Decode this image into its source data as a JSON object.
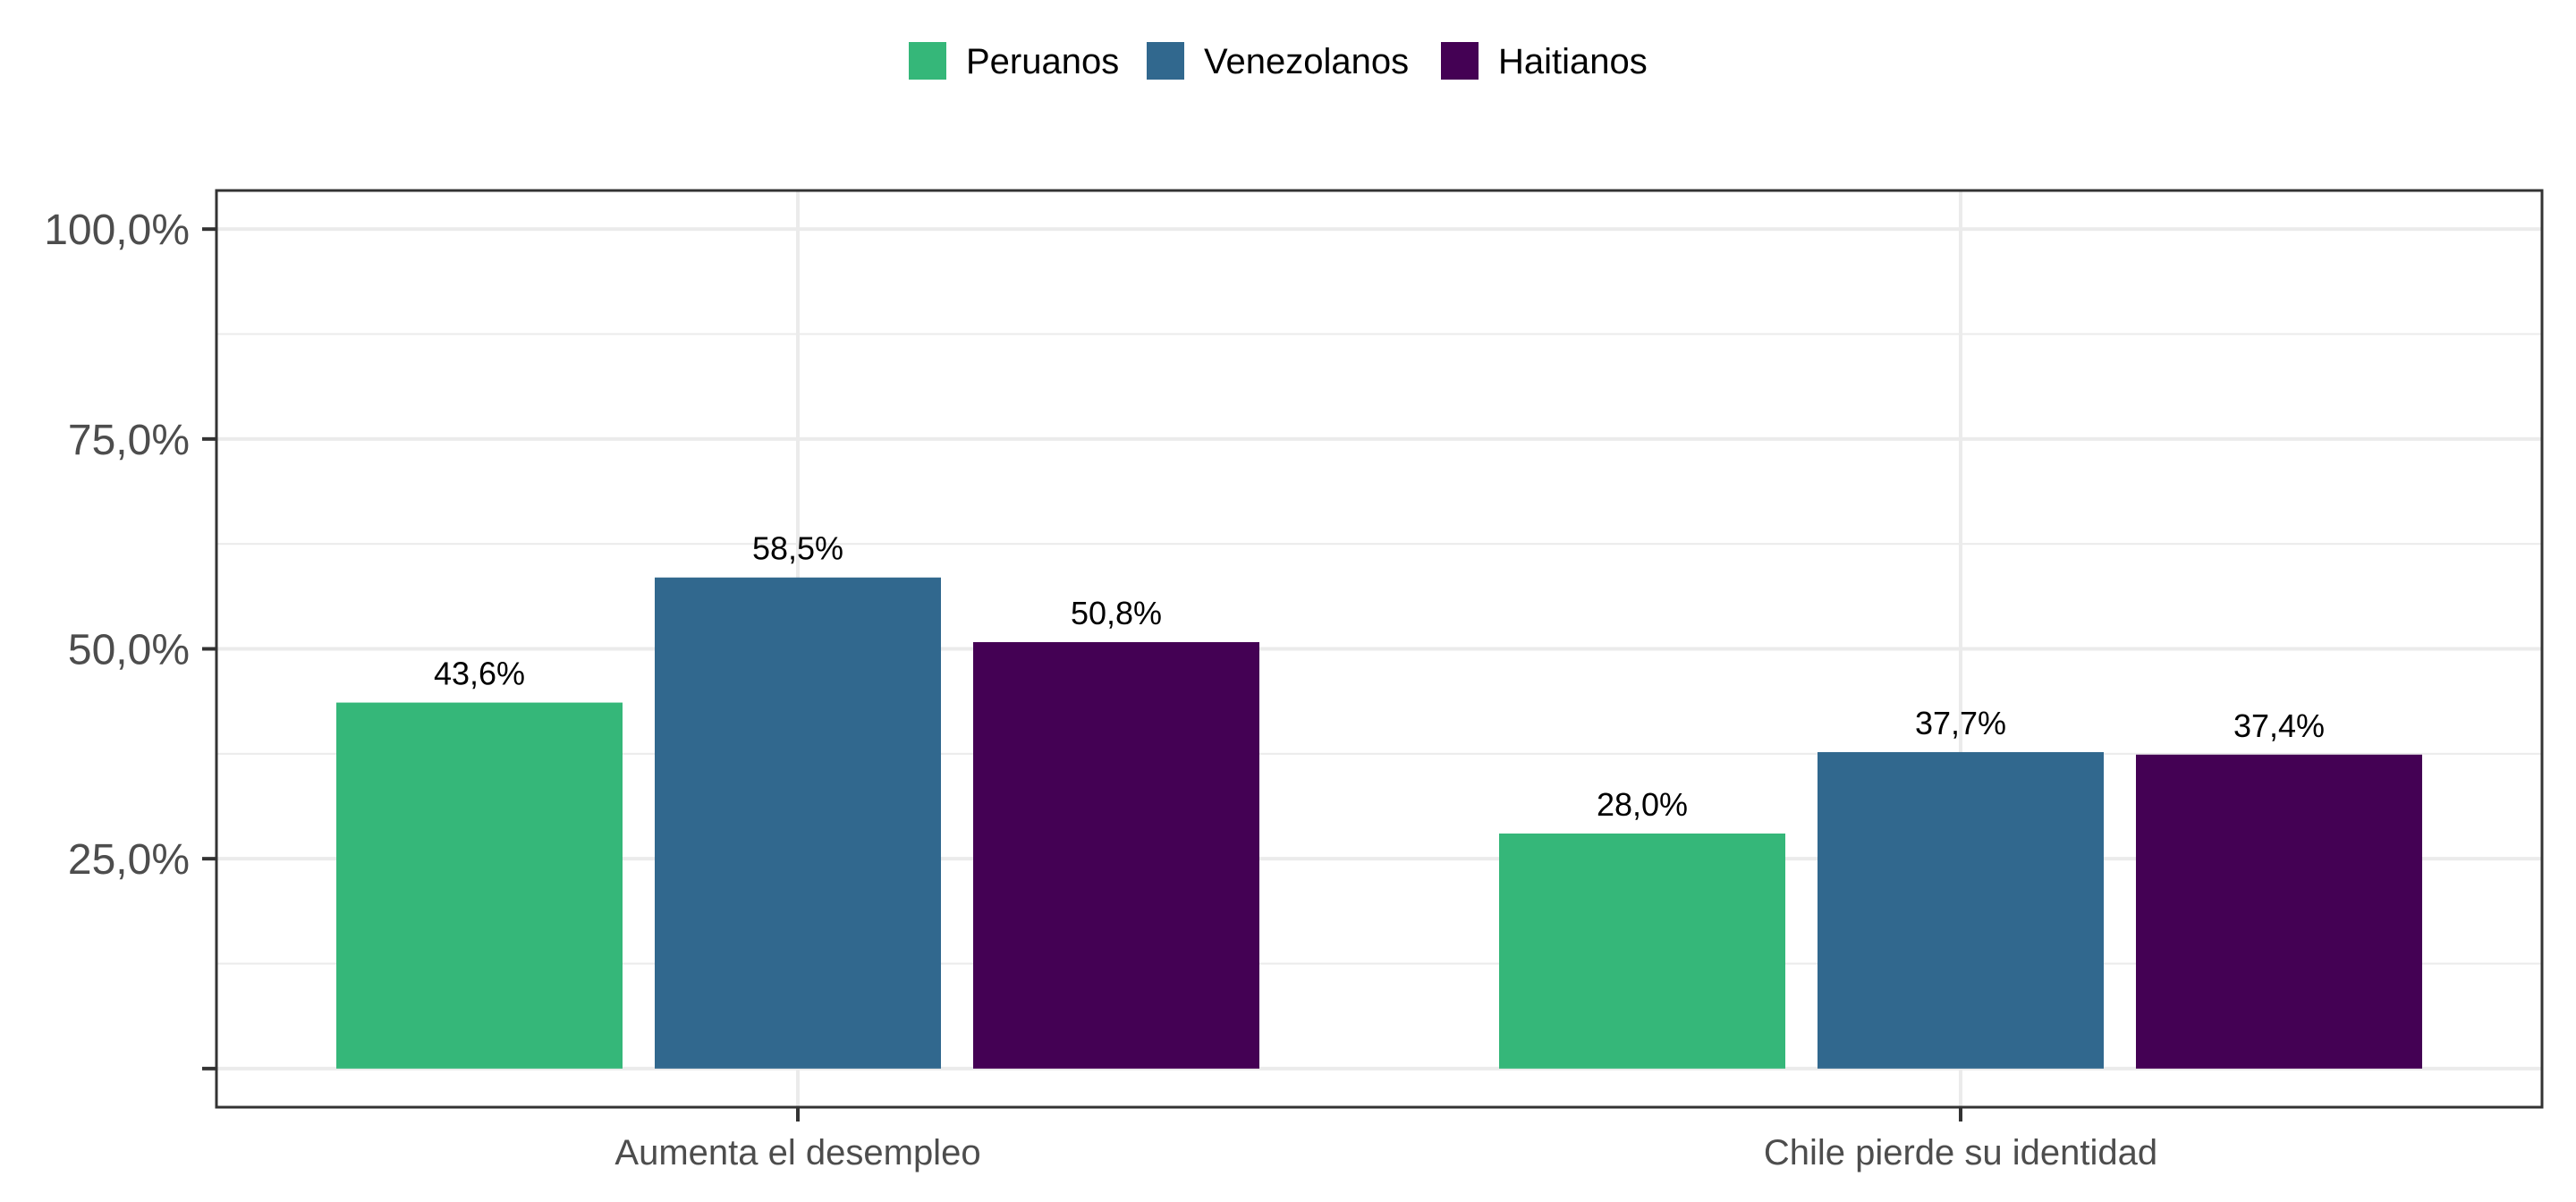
{
  "chart_data": {
    "type": "bar",
    "categories": [
      "Aumenta el desempleo",
      "Chile pierde su identidad"
    ],
    "series": [
      {
        "name": "Peruanos",
        "values": [
          43.6,
          28.0
        ],
        "labels": [
          "43,6%",
          "28,0%"
        ],
        "color": "#35B779"
      },
      {
        "name": "Venezolanos",
        "values": [
          58.5,
          37.7
        ],
        "labels": [
          "58,5%",
          "37,7%"
        ],
        "color": "#31688E"
      },
      {
        "name": "Haitianos",
        "values": [
          50.8,
          37.4
        ],
        "labels": [
          "50,8%",
          "37,4%"
        ],
        "color": "#440154"
      }
    ],
    "yticks": [
      0,
      25,
      50,
      75,
      100
    ],
    "ytick_labels": [
      "",
      "25,0%",
      "50,0%",
      "75,0%",
      "100,0%"
    ],
    "ylim": [
      -4.6,
      104.6
    ],
    "title": "",
    "xlabel": "",
    "ylabel": "",
    "grid": true,
    "legend_position": "top"
  }
}
